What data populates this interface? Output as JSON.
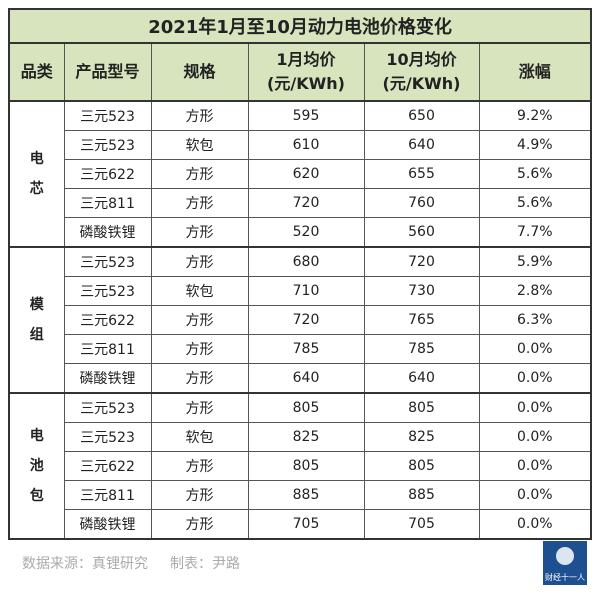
{
  "title": "2021年1月至10月动力电池价格变化",
  "headers": [
    [
      "品类"
    ],
    [
      "产品型号"
    ],
    [
      "规格"
    ],
    [
      "1月均价",
      "(元/KWh)"
    ],
    [
      "10月均价",
      "(元/KWh)"
    ],
    [
      "涨幅"
    ]
  ],
  "groups": [
    {
      "label": "电芯",
      "rows": [
        [
          "三元523",
          "方形",
          "595",
          "650",
          "9.2%"
        ],
        [
          "三元523",
          "软包",
          "610",
          "640",
          "4.9%"
        ],
        [
          "三元622",
          "方形",
          "620",
          "655",
          "5.6%"
        ],
        [
          "三元811",
          "方形",
          "720",
          "760",
          "5.6%"
        ],
        [
          "磷酸铁锂",
          "方形",
          "520",
          "560",
          "7.7%"
        ]
      ]
    },
    {
      "label": "模组",
      "rows": [
        [
          "三元523",
          "方形",
          "680",
          "720",
          "5.9%"
        ],
        [
          "三元523",
          "软包",
          "710",
          "730",
          "2.8%"
        ],
        [
          "三元622",
          "方形",
          "720",
          "765",
          "6.3%"
        ],
        [
          "三元811",
          "方形",
          "785",
          "785",
          "0.0%"
        ],
        [
          "磷酸铁锂",
          "方形",
          "640",
          "640",
          "0.0%"
        ]
      ]
    },
    {
      "label": "电池包",
      "rows": [
        [
          "三元523",
          "方形",
          "805",
          "805",
          "0.0%"
        ],
        [
          "三元523",
          "软包",
          "825",
          "825",
          "0.0%"
        ],
        [
          "三元622",
          "方形",
          "805",
          "805",
          "0.0%"
        ],
        [
          "三元811",
          "方形",
          "885",
          "885",
          "0.0%"
        ],
        [
          "磷酸铁锂",
          "方形",
          "705",
          "705",
          "0.0%"
        ]
      ]
    }
  ],
  "footer": {
    "source": "数据来源：真锂研究",
    "author": "制表：尹路"
  },
  "logo": "财经十一人"
}
